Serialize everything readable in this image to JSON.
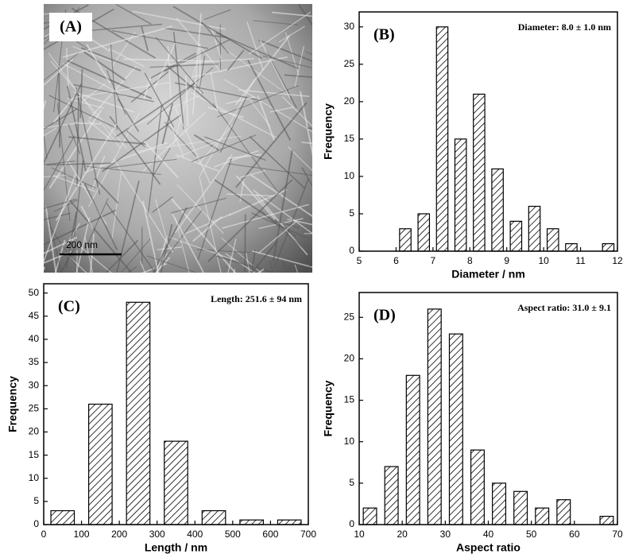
{
  "image": {
    "label": "(A)",
    "scale_bar": "200 nm"
  },
  "chart_data": [
    {
      "type": "bar",
      "panel_label": "(B)",
      "annotation": "Diameter: 8.0 ±  1.0 nm",
      "xlabel": "Diameter / nm",
      "ylabel": "Frequency",
      "color": "#000000",
      "x": [
        6.25,
        6.75,
        7.25,
        7.75,
        8.25,
        8.75,
        9.25,
        9.75,
        10.25,
        10.75,
        11.75
      ],
      "values": [
        3,
        5,
        30,
        15,
        21,
        11,
        4,
        6,
        3,
        1,
        1
      ],
      "xlim": [
        5,
        12
      ],
      "xticks": [
        5,
        6,
        7,
        8,
        9,
        10,
        11,
        12
      ],
      "ylim": [
        0,
        32
      ],
      "yticks": [
        0,
        5,
        10,
        15,
        20,
        25,
        30
      ]
    },
    {
      "type": "bar",
      "panel_label": "(C)",
      "annotation": "Length: 251.6 ±  94 nm",
      "xlabel": "Length / nm",
      "ylabel": "Frequency",
      "color": "#000000",
      "x": [
        50,
        150,
        250,
        350,
        450,
        550,
        650
      ],
      "values": [
        3,
        26,
        48,
        18,
        3,
        1,
        1
      ],
      "xlim": [
        0,
        700
      ],
      "xticks": [
        0,
        100,
        200,
        300,
        400,
        500,
        600,
        700
      ],
      "ylim": [
        0,
        52
      ],
      "yticks": [
        0,
        5,
        10,
        15,
        20,
        25,
        30,
        35,
        40,
        45,
        50
      ]
    },
    {
      "type": "bar",
      "panel_label": "(D)",
      "annotation": "Aspect ratio: 31.0 ±  9.1",
      "xlabel": "Aspect ratio",
      "ylabel": "Frequency",
      "color": "#000000",
      "x": [
        12.5,
        17.5,
        22.5,
        27.5,
        32.5,
        37.5,
        42.5,
        47.5,
        52.5,
        57.5,
        67.5
      ],
      "values": [
        2,
        7,
        18,
        26,
        23,
        9,
        5,
        4,
        2,
        3,
        1
      ],
      "xlim": [
        10,
        70
      ],
      "xticks": [
        10,
        20,
        30,
        40,
        50,
        60,
        70
      ],
      "ylim": [
        0,
        28
      ],
      "yticks": [
        0,
        5,
        10,
        15,
        20,
        25
      ]
    }
  ]
}
